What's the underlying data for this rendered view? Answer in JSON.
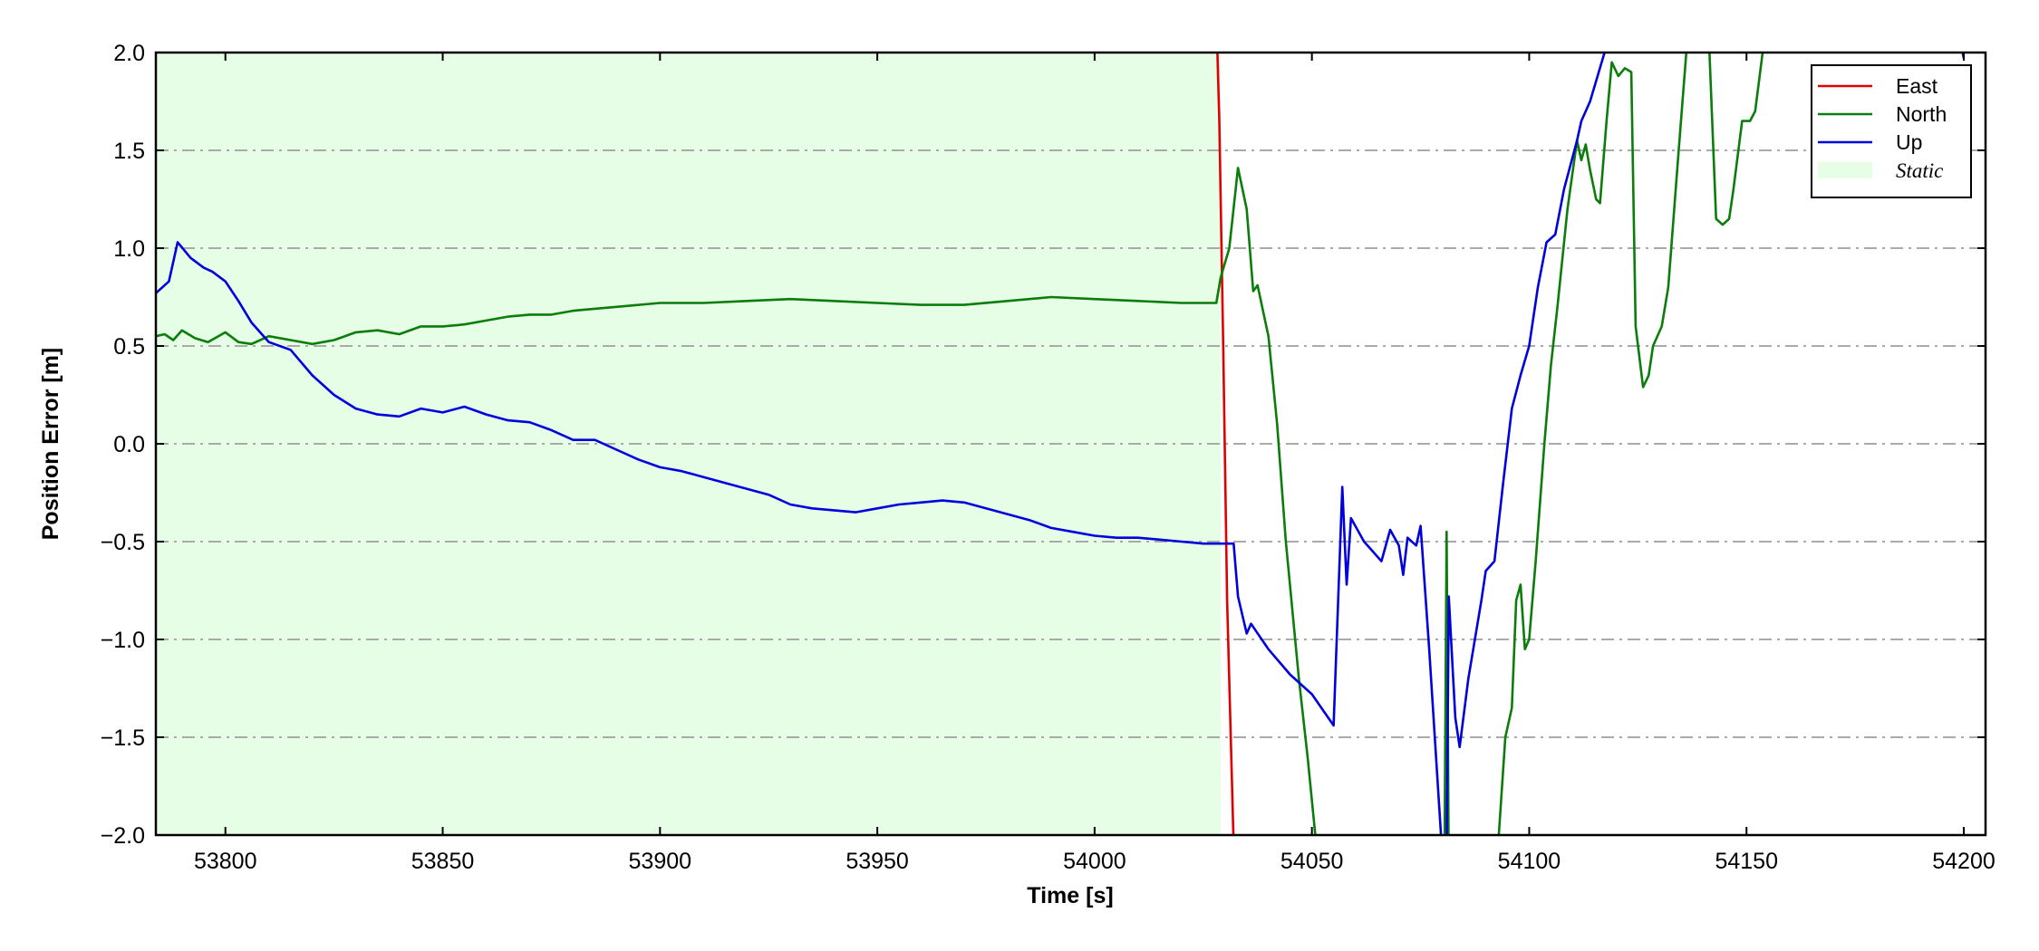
{
  "chart_data": {
    "type": "line",
    "xlabel": "Time [s]",
    "ylabel": "Position Error [m]",
    "xlim": [
      53784,
      54205
    ],
    "ylim": [
      -2.0,
      2.0
    ],
    "xticks": [
      53800,
      53850,
      53900,
      53950,
      54000,
      54050,
      54100,
      54150,
      54200
    ],
    "yticks": [
      {
        "value": -2.0,
        "label": "−2.0"
      },
      {
        "value": -1.5,
        "label": "−1.5"
      },
      {
        "value": -1.0,
        "label": "−1.0"
      },
      {
        "value": -0.5,
        "label": "−0.5"
      },
      {
        "value": 0.0,
        "label": "0.0"
      },
      0.5,
      {
        "value": 1.0,
        "label": "1.0"
      },
      1.5,
      {
        "value": 2.0,
        "label": "2.0"
      }
    ],
    "grid": true,
    "legend": "upper right",
    "shaded_region": {
      "name": "Static",
      "x": [
        53784,
        54029
      ],
      "color": "#e6fde6"
    },
    "series": [
      {
        "name": "East",
        "color": "#e00000",
        "x": [
          54028,
          54028.7,
          54029.6,
          54030.5,
          54032
        ],
        "values": [
          2.2,
          1.65,
          0.5,
          -0.8,
          -2.05
        ]
      },
      {
        "name": "North",
        "color": "#0a7d0a",
        "x": [
          53784,
          53786,
          53788,
          53790,
          53793,
          53796,
          53800,
          53803,
          53806,
          53810,
          53815,
          53820,
          53825,
          53830,
          53835,
          53840,
          53845,
          53850,
          53855,
          53860,
          53865,
          53870,
          53875,
          53880,
          53890,
          53900,
          53910,
          53920,
          53930,
          53940,
          53950,
          53960,
          53970,
          53980,
          53990,
          54000,
          54010,
          54020,
          54028,
          54029,
          54031,
          54033,
          54035,
          54036.5,
          54037.5,
          54040,
          54042,
          54044,
          54047,
          54049,
          54051,
          54080.5,
          54081,
          54081.5,
          54093,
          54094.5,
          54096,
          54097,
          54098,
          54099,
          54100,
          54101.5,
          54103.5,
          54105,
          54106.5,
          54108.8,
          54111,
          54112,
          54113,
          54114,
          54115.4,
          54116.3,
          54117.8,
          54119,
          54120.5,
          54122,
          54123.5,
          54124.5,
          54126.2,
          54127.5,
          54128.5,
          54130.5,
          54132,
          54134.4,
          54136.5,
          54141.3,
          54143,
          54144.5,
          54146,
          54147,
          54149,
          54150.8,
          54152,
          54154,
          54155
        ],
        "values": [
          0.55,
          0.56,
          0.53,
          0.58,
          0.54,
          0.52,
          0.57,
          0.52,
          0.51,
          0.55,
          0.53,
          0.51,
          0.53,
          0.57,
          0.58,
          0.56,
          0.6,
          0.6,
          0.61,
          0.63,
          0.65,
          0.66,
          0.66,
          0.68,
          0.7,
          0.72,
          0.72,
          0.73,
          0.74,
          0.73,
          0.72,
          0.71,
          0.71,
          0.73,
          0.75,
          0.74,
          0.73,
          0.72,
          0.72,
          0.85,
          1.0,
          1.41,
          1.2,
          0.78,
          0.81,
          0.55,
          0.1,
          -0.5,
          -1.2,
          -1.6,
          -2.05,
          -2.2,
          -0.45,
          -2.2,
          -2.0,
          -1.5,
          -1.35,
          -0.8,
          -0.72,
          -1.05,
          -1.0,
          -0.6,
          0.0,
          0.4,
          0.7,
          1.2,
          1.55,
          1.45,
          1.53,
          1.4,
          1.25,
          1.23,
          1.65,
          1.95,
          1.88,
          1.92,
          1.9,
          0.6,
          0.29,
          0.35,
          0.5,
          0.6,
          0.8,
          1.5,
          2.1,
          2.1,
          1.15,
          1.12,
          1.15,
          1.3,
          1.65,
          1.65,
          1.7,
          2.05,
          2.2
        ]
      },
      {
        "name": "Up",
        "color": "#0000dd",
        "x": [
          53784,
          53787,
          53789,
          53792,
          53795,
          53797,
          53800,
          53803,
          53806,
          53810,
          53815,
          53820,
          53825,
          53830,
          53835,
          53840,
          53845,
          53850,
          53855,
          53860,
          53865,
          53870,
          53875,
          53880,
          53885,
          53890,
          53895,
          53900,
          53905,
          53910,
          53915,
          53920,
          53925,
          53930,
          53935,
          53940,
          53945,
          53950,
          53955,
          53960,
          53965,
          53970,
          53975,
          53980,
          53985,
          53990,
          53995,
          54000,
          54005,
          54010,
          54015,
          54020,
          54025,
          54030,
          54032,
          54033,
          54035,
          54036,
          54040,
          54045,
          54050,
          54055,
          54057,
          54058,
          54059,
          54062,
          54064,
          54066,
          54068,
          54070,
          54071,
          54072,
          54074,
          54075,
          54077,
          54078,
          54080,
          54081,
          54081.5,
          54083,
          54084,
          54086,
          54089,
          54090,
          54092,
          54094,
          54096,
          54098,
          54100,
          54102,
          54104,
          54106,
          54108,
          54111,
          54112,
          54114,
          54116,
          54118,
          54120,
          54198,
          54200
        ],
        "values": [
          0.77,
          0.83,
          1.03,
          0.95,
          0.9,
          0.88,
          0.83,
          0.73,
          0.62,
          0.52,
          0.48,
          0.35,
          0.25,
          0.18,
          0.15,
          0.14,
          0.18,
          0.16,
          0.19,
          0.15,
          0.12,
          0.11,
          0.07,
          0.02,
          0.02,
          -0.03,
          -0.08,
          -0.12,
          -0.14,
          -0.17,
          -0.2,
          -0.23,
          -0.26,
          -0.31,
          -0.33,
          -0.34,
          -0.35,
          -0.33,
          -0.31,
          -0.3,
          -0.29,
          -0.3,
          -0.33,
          -0.36,
          -0.39,
          -0.43,
          -0.45,
          -0.47,
          -0.48,
          -0.48,
          -0.49,
          -0.5,
          -0.51,
          -0.51,
          -0.51,
          -0.78,
          -0.97,
          -0.92,
          -1.05,
          -1.18,
          -1.28,
          -1.44,
          -0.22,
          -0.72,
          -0.38,
          -0.5,
          -0.55,
          -0.6,
          -0.44,
          -0.52,
          -0.67,
          -0.48,
          -0.52,
          -0.42,
          -1.05,
          -1.4,
          -2.1,
          -2.1,
          -0.78,
          -1.4,
          -1.55,
          -1.2,
          -0.8,
          -0.65,
          -0.6,
          -0.2,
          0.18,
          0.35,
          0.5,
          0.8,
          1.03,
          1.07,
          1.3,
          1.55,
          1.65,
          1.75,
          1.9,
          2.05,
          2.2,
          2.2,
          1.97
        ]
      }
    ]
  }
}
